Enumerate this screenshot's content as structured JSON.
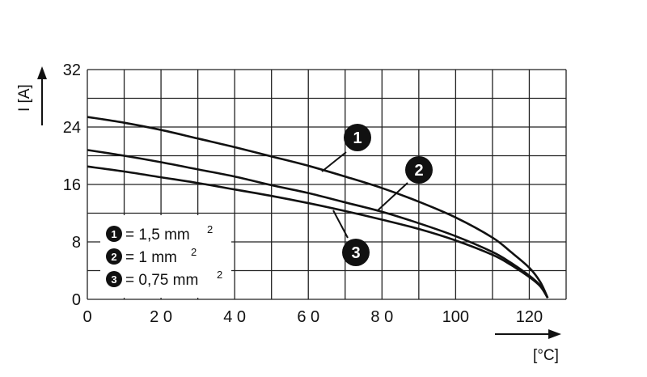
{
  "chart_data": {
    "type": "line",
    "xlabel": "[°C]",
    "ylabel": "I [A]",
    "xlim": [
      0,
      130
    ],
    "ylim": [
      0,
      32
    ],
    "grid": true,
    "x_ticks": [
      0,
      10,
      20,
      30,
      40,
      50,
      60,
      70,
      80,
      90,
      100,
      110,
      120,
      130
    ],
    "x_tick_labels": [
      "0",
      "",
      "2 0",
      "",
      "4 0",
      "",
      "6 0",
      "",
      "8 0",
      "",
      "100",
      "",
      "120",
      ""
    ],
    "y_ticks": [
      0,
      4,
      8,
      12,
      16,
      20,
      24,
      28,
      32
    ],
    "y_tick_labels": [
      "0",
      "",
      "8",
      "",
      "16",
      "",
      "24",
      "",
      "32"
    ],
    "series": [
      {
        "name": "1",
        "x": [
          0,
          10,
          20,
          30,
          40,
          50,
          60,
          70,
          80,
          90,
          100,
          110,
          115,
          120,
          123,
          125
        ],
        "values": [
          25.4,
          24.6,
          23.6,
          22.4,
          21.2,
          19.9,
          18.6,
          17.1,
          15.5,
          13.6,
          11.4,
          8.6,
          6.6,
          4.4,
          2.4,
          0.2
        ]
      },
      {
        "name": "2",
        "x": [
          0,
          10,
          20,
          30,
          40,
          50,
          60,
          70,
          80,
          90,
          100,
          110,
          115,
          120,
          123,
          125
        ],
        "values": [
          20.8,
          20.0,
          19.1,
          18.1,
          17.1,
          15.9,
          14.8,
          13.5,
          12.2,
          10.6,
          8.8,
          6.6,
          5.1,
          3.3,
          1.9,
          0.2
        ]
      },
      {
        "name": "3",
        "x": [
          0,
          10,
          20,
          30,
          40,
          50,
          60,
          70,
          80,
          90,
          100,
          110,
          115,
          120,
          123,
          125
        ],
        "values": [
          18.5,
          17.8,
          17.0,
          16.2,
          15.3,
          14.4,
          13.4,
          12.3,
          11.1,
          9.8,
          8.2,
          6.2,
          4.8,
          3.1,
          1.8,
          0.2
        ]
      }
    ],
    "legend": {
      "placement": "bottom-left",
      "entries": [
        {
          "num": "1",
          "text": "= 1,5 mm",
          "sup": "2"
        },
        {
          "num": "2",
          "text": "= 1 mm",
          "sup": "2"
        },
        {
          "num": "3",
          "text": "= 0,75 mm",
          "sup": "2"
        }
      ]
    },
    "annotations": [
      "1",
      "2",
      "3"
    ]
  }
}
